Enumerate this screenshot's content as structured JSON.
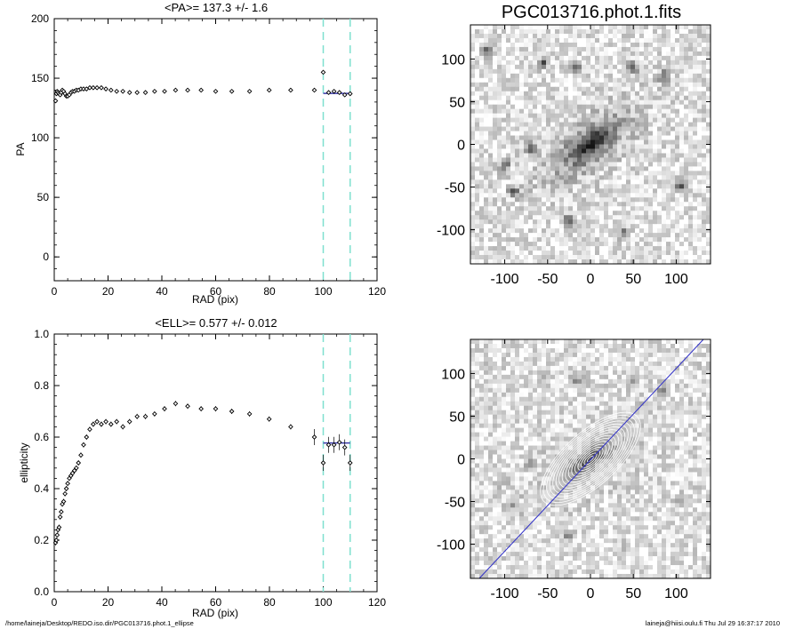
{
  "chart_data": [
    {
      "type": "scatter",
      "title": "<PA>= 137.3 +/-   1.6",
      "xlabel": "RAD (pix)",
      "ylabel": "PA",
      "xlim": [
        0,
        120
      ],
      "ylim": [
        -20,
        200
      ],
      "xticks": [
        "0",
        "20",
        "40",
        "60",
        "80",
        "100",
        "120"
      ],
      "yticks": [
        "0",
        "50",
        "100",
        "150",
        "200"
      ],
      "vlines": [
        100,
        110
      ],
      "mean_line": {
        "y": 137.3,
        "x0": 100,
        "x1": 110
      },
      "series": [
        {
          "x": [
            0.5,
            0.8,
            1.1,
            1.4,
            1.8,
            2.2,
            2.6,
            3,
            3.5,
            4,
            4.5,
            5,
            5.6,
            6.2,
            6.8,
            7.5,
            8.2,
            9,
            9.9,
            10.9,
            12,
            13.2,
            14.5,
            15.9,
            17.5,
            19.2,
            21.1,
            23.2,
            25.5,
            28,
            30.8,
            33.9,
            37.3,
            41,
            45.1,
            49.6,
            54.6,
            60,
            66,
            72.6,
            79.9,
            87.9,
            96.7,
            100,
            102,
            104,
            106,
            108,
            110
          ],
          "y": [
            131,
            137,
            139,
            138,
            137,
            136,
            138,
            140,
            139,
            137,
            135,
            135,
            136,
            138,
            139,
            139,
            140,
            140,
            141,
            141,
            141,
            142,
            142,
            142,
            142,
            141,
            140,
            139,
            139,
            138,
            138,
            138,
            139,
            139,
            140,
            140,
            140,
            139,
            139,
            139,
            140,
            140,
            140,
            155,
            138,
            139,
            138,
            136,
            137
          ]
        }
      ]
    },
    {
      "type": "scatter",
      "title": "<ELL>= 0.577 +/-  0.012",
      "xlabel": "RAD (pix)",
      "ylabel": "ellipticity",
      "xlim": [
        0,
        120
      ],
      "ylim": [
        0,
        1
      ],
      "xticks": [
        "0",
        "20",
        "40",
        "60",
        "80",
        "100",
        "120"
      ],
      "yticks": [
        "0.0",
        "0.2",
        "0.4",
        "0.6",
        "0.8",
        "1.0"
      ],
      "vlines": [
        100,
        110
      ],
      "mean_line": {
        "y": 0.577,
        "x0": 100,
        "x1": 110
      },
      "series": [
        {
          "x": [
            0.5,
            0.8,
            1.1,
            1.4,
            1.8,
            2.2,
            2.6,
            3,
            3.5,
            4,
            4.5,
            5,
            5.6,
            6.2,
            6.8,
            7.5,
            8.2,
            9,
            9.9,
            10.9,
            12,
            13.2,
            14.5,
            15.9,
            17.5,
            19.2,
            21.1,
            23.2,
            25.5,
            28,
            30.8,
            33.9,
            37.3,
            41,
            45.1,
            49.6,
            54.6,
            60,
            66,
            72.6,
            79.9,
            87.9,
            96.7,
            100,
            102,
            104,
            106,
            108,
            110
          ],
          "y": [
            0.19,
            0.2,
            0.22,
            0.24,
            0.25,
            0.29,
            0.31,
            0.34,
            0.35,
            0.38,
            0.4,
            0.42,
            0.44,
            0.45,
            0.46,
            0.47,
            0.48,
            0.5,
            0.53,
            0.57,
            0.6,
            0.63,
            0.65,
            0.66,
            0.65,
            0.66,
            0.65,
            0.66,
            0.64,
            0.66,
            0.68,
            0.68,
            0.69,
            0.71,
            0.73,
            0.72,
            0.71,
            0.71,
            0.7,
            0.69,
            0.67,
            0.64,
            0.6,
            0.5,
            0.57,
            0.57,
            0.58,
            0.56,
            0.5
          ]
        }
      ]
    }
  ],
  "images": {
    "top": {
      "title": "PGC013716.phot.1.fits",
      "xticks": [
        "-100",
        "-50",
        "0",
        "50",
        "100"
      ],
      "yticks": [
        "-100",
        "-50",
        "0",
        "50",
        "100"
      ]
    },
    "bottom": {
      "xticks": [
        "-100",
        "-50",
        "0",
        "50",
        "100"
      ],
      "yticks": [
        "-100",
        "-50",
        "0",
        "50",
        "100"
      ]
    }
  },
  "colors": {
    "vline": "#7fe0cf",
    "mean_line": "#3a3aa8",
    "contour": "#ffffff",
    "major_axis": "#3030c8"
  },
  "footer": {
    "left": "/home/laineja/Desktop/REDO.iso.dir/PGC013716.phot.1_ellipse",
    "right": "laineja@hiisi.oulu.fi  Thu Jul 29 16:37:17 2010"
  }
}
